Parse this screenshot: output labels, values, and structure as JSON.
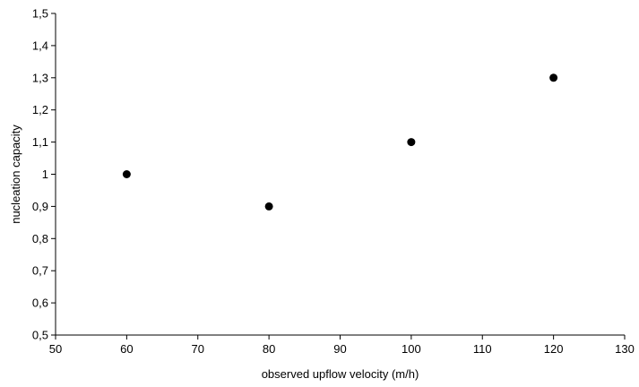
{
  "chart_data": {
    "type": "scatter",
    "title": "",
    "xlabel": "observed upflow velocity (m/h)",
    "ylabel": "nucleation capacity",
    "xlim": [
      50,
      130
    ],
    "ylim": [
      0.5,
      1.5
    ],
    "x_ticks": [
      50,
      60,
      70,
      80,
      90,
      100,
      110,
      120,
      130
    ],
    "y_ticks": [
      "0,5",
      "0,6",
      "0,7",
      "0,8",
      "0,9",
      "1",
      "1,1",
      "1,2",
      "1,3",
      "1,4",
      "1,5"
    ],
    "y_tick_values": [
      0.5,
      0.6,
      0.7,
      0.8,
      0.9,
      1.0,
      1.1,
      1.2,
      1.3,
      1.4,
      1.5
    ],
    "grid": false,
    "legend": "none",
    "marker_color": "#000000",
    "series": [
      {
        "x": [
          60,
          80,
          100,
          120
        ],
        "y": [
          1.0,
          0.9,
          1.1,
          1.3
        ]
      }
    ]
  }
}
